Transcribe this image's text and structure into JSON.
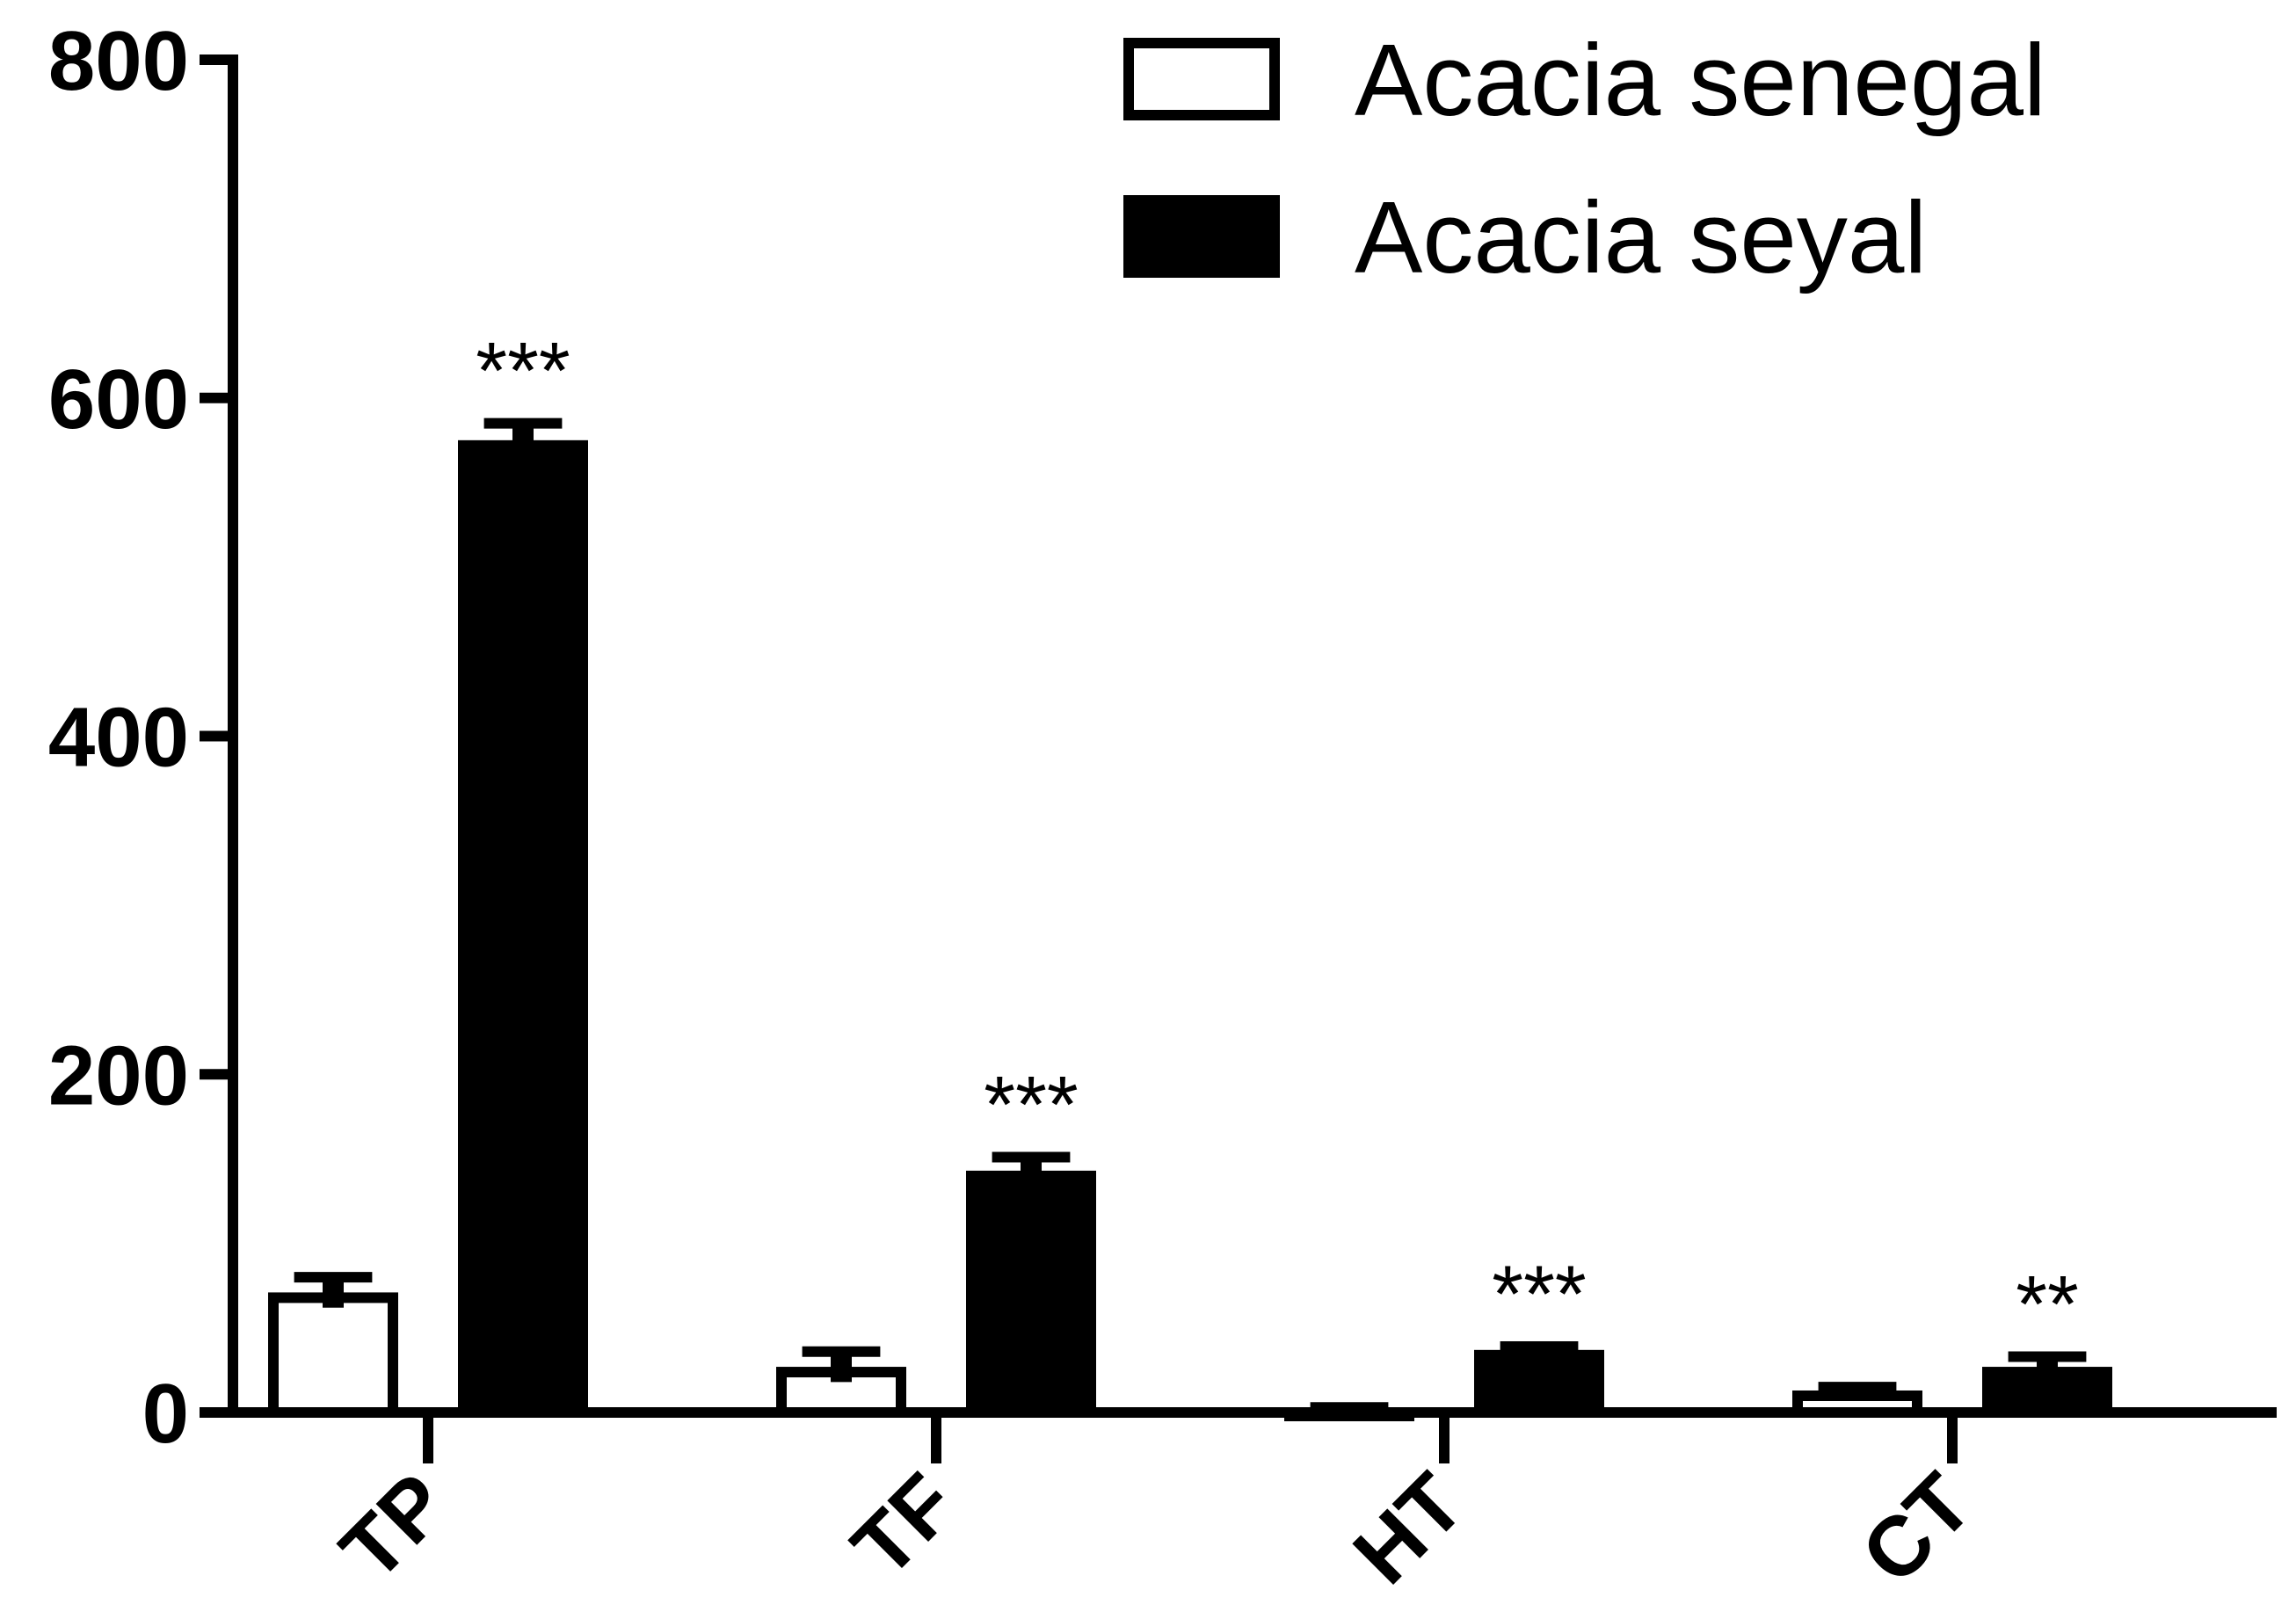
{
  "chart_data": {
    "type": "bar",
    "categories": [
      "TP",
      "TF",
      "HT",
      "CT"
    ],
    "series": [
      {
        "name": "Acacia senegal",
        "values": [
          71,
          27,
          2,
          13
        ],
        "errors": [
          9,
          9,
          1,
          2
        ],
        "fill": "#ffffff",
        "stroke": "#000000"
      },
      {
        "name": "Acacia seyal",
        "values": [
          575,
          143,
          37,
          27
        ],
        "errors": [
          10,
          8,
          2,
          6
        ],
        "fill": "#000000",
        "stroke": "#000000"
      }
    ],
    "significance": [
      "***",
      "***",
      "***",
      "**"
    ],
    "yticks": [
      "0",
      "200",
      "400",
      "600",
      "800"
    ],
    "ylim": [
      0,
      800
    ],
    "title": "",
    "xlabel": "",
    "ylabel": "",
    "legend_position": "top-right",
    "grid": false
  }
}
